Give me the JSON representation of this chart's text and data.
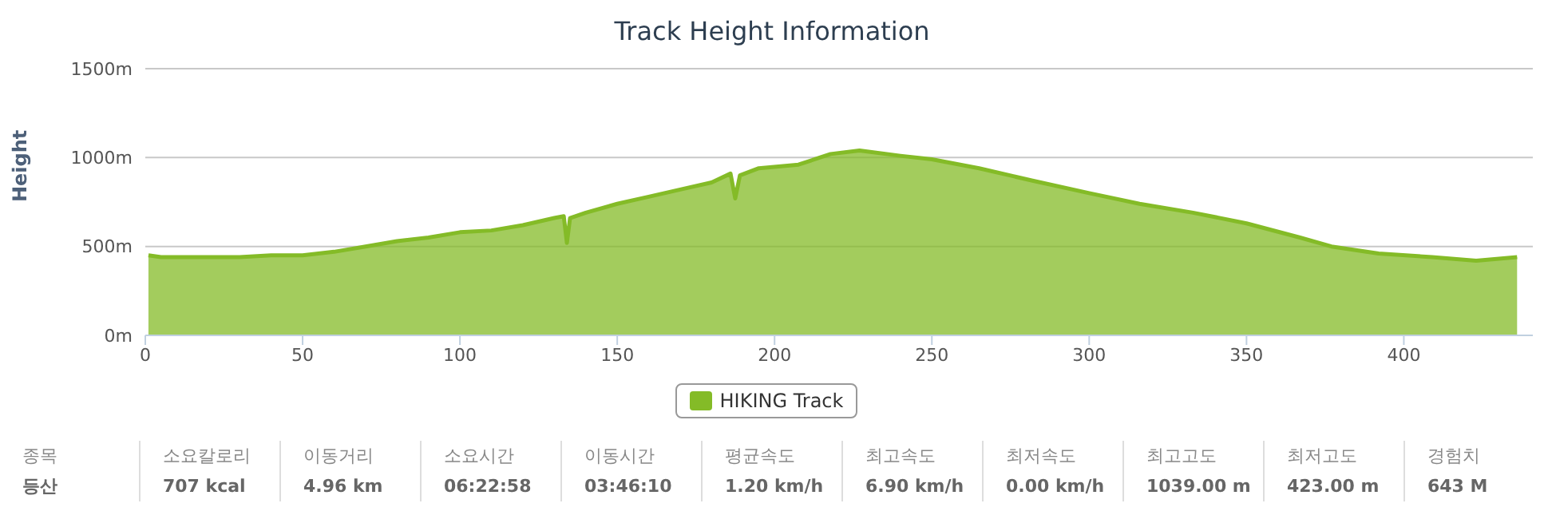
{
  "chart_data": {
    "type": "area",
    "title": "Track Height Information",
    "ylabel": "Height",
    "x": [
      1,
      5,
      20,
      30,
      40,
      50,
      60,
      70,
      80,
      90,
      100,
      110,
      120,
      130,
      133,
      134,
      135,
      140,
      150,
      160,
      170,
      180,
      186,
      187.5,
      189,
      195,
      207.6,
      217.8,
      227,
      240,
      250,
      265,
      282,
      300,
      316,
      333,
      350,
      367,
      377,
      392,
      409,
      423,
      436
    ],
    "series": [
      {
        "name": "HIKING Track",
        "color": "#84bb27",
        "values": [
          450,
          440,
          440,
          440,
          450,
          450,
          470,
          500,
          530,
          550,
          580,
          590,
          620,
          660,
          670,
          520,
          660,
          690,
          740,
          780,
          820,
          860,
          910,
          770,
          900,
          940,
          960,
          1020,
          1040,
          1010,
          990,
          940,
          870,
          800,
          740,
          690,
          630,
          550,
          500,
          460,
          440,
          420,
          440
        ]
      }
    ],
    "xlim": [
      0,
      441
    ],
    "xticks": [
      0,
      50,
      100,
      150,
      200,
      250,
      300,
      350,
      400
    ],
    "ylim": [
      0,
      1500
    ],
    "yticks": [
      {
        "value": 0,
        "label": "0m"
      },
      {
        "value": 500,
        "label": "500m"
      },
      {
        "value": 1000,
        "label": "1000m"
      },
      {
        "value": 1500,
        "label": "1500m"
      }
    ],
    "grid": "y",
    "legend": "bottom",
    "annotations": [
      "종목",
      "등산",
      "소요칼로리",
      "707 kcal",
      "이동거리",
      "4.96 km",
      "소요시간",
      "06:22:58",
      "이동시간",
      "03:46:10",
      "평균속도",
      "1.20 km/h",
      "최고속도",
      "6.90 km/h",
      "최저속도",
      "0.00 km/h",
      "최고고도",
      "1039.00 m",
      "최저고도",
      "423.00 m",
      "경험치",
      "643 M"
    ]
  }
}
